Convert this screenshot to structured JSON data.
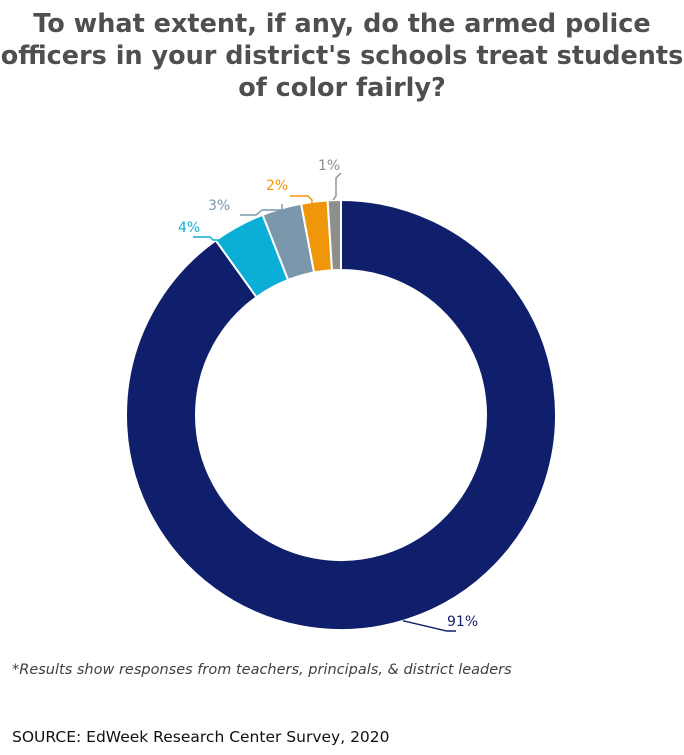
{
  "chart_data": {
    "type": "pie",
    "title": "To what extent, if any, do the armed police\nofficers in your district's schools treat students\nof color fairly?",
    "donut": true,
    "slices": [
      {
        "value": 91,
        "label": "91%",
        "color": "#0f1f6b"
      },
      {
        "value": 4,
        "label": "4%",
        "color": "#0aaed6"
      },
      {
        "value": 3,
        "label": "3%",
        "color": "#7a97ab"
      },
      {
        "value": 2,
        "label": "2%",
        "color": "#f0960a"
      },
      {
        "value": 1,
        "label": "1%",
        "color": "#8e8e8e"
      }
    ]
  },
  "footer": {
    "note": "*Results show responses from teachers, principals, & district leaders",
    "source": "SOURCE: EdWeek Research Center Survey, 2020"
  }
}
